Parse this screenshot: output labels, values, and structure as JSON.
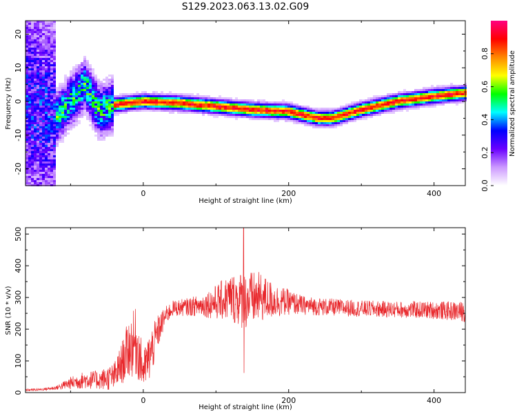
{
  "title": "S129.2023.063.13.02.G09",
  "chart_data": [
    {
      "type": "heatmap",
      "name": "spectrogram",
      "xlabel": "Height of straight line (km)",
      "ylabel": "Frequency (Hz)",
      "xlim": [
        -162,
        443
      ],
      "ylim": [
        -25,
        24
      ],
      "xticks": [
        0,
        200,
        400
      ],
      "xtick_labels": [
        "0",
        "200",
        "400"
      ],
      "yticks": [
        -20,
        -10,
        0,
        10,
        20
      ],
      "ytick_labels": [
        "-20",
        "-10",
        "0",
        "10",
        "20"
      ],
      "ridge_x": [
        -162,
        -120,
        -100,
        -80,
        -60,
        -40,
        -20,
        0,
        50,
        100,
        150,
        200,
        240,
        260,
        300,
        350,
        400,
        443
      ],
      "ridge_freq": [
        0,
        -5,
        0,
        5,
        -3,
        -1,
        -0.5,
        0,
        -0.5,
        -1.5,
        -2.5,
        -3,
        -5,
        -5,
        -2.5,
        0,
        1.5,
        2.5
      ],
      "colorbar": {
        "label": "Normalized spectral amplitude",
        "ticks": [
          0.0,
          0.2,
          0.4,
          0.6,
          0.8
        ],
        "tick_labels": [
          "0.0",
          "0.2",
          "0.4",
          "0.6",
          "0.8"
        ],
        "range": [
          0,
          1
        ],
        "colors": [
          "#ffffff",
          "#cc99ff",
          "#6a00ff",
          "#0000ff",
          "#00ffff",
          "#00ff00",
          "#ffff00",
          "#ff8800",
          "#ff0000",
          "#ff0080"
        ]
      }
    },
    {
      "type": "line",
      "name": "snr",
      "xlabel": "Height of straight line (km)",
      "ylabel": "SNR (10 * v/v)",
      "xlim": [
        -162,
        443
      ],
      "ylim": [
        0,
        520
      ],
      "xticks": [
        0,
        200,
        400
      ],
      "xtick_labels": [
        "0",
        "200",
        "400"
      ],
      "yticks": [
        0,
        100,
        200,
        300,
        400,
        500
      ],
      "ytick_labels": [
        "0",
        "100",
        "200",
        "300",
        "400",
        "500"
      ],
      "series": [
        {
          "name": "SNR",
          "color": "#e8262a",
          "x": [
            -162,
            -140,
            -120,
            -100,
            -80,
            -60,
            -40,
            -30,
            -20,
            -10,
            0,
            10,
            20,
            30,
            40,
            60,
            80,
            100,
            120,
            140,
            160,
            180,
            200,
            220,
            250,
            300,
            350,
            400,
            443
          ],
          "y": [
            8,
            10,
            15,
            30,
            40,
            40,
            50,
            90,
            140,
            160,
            70,
            120,
            190,
            240,
            265,
            270,
            275,
            285,
            300,
            290,
            300,
            290,
            285,
            275,
            270,
            265,
            262,
            260,
            255
          ],
          "noise": [
            4,
            4,
            6,
            20,
            28,
            30,
            45,
            65,
            95,
            110,
            60,
            80,
            55,
            30,
            25,
            28,
            35,
            55,
            75,
            95,
            80,
            55,
            40,
            30,
            28,
            26,
            26,
            28,
            32
          ],
          "peak": {
            "x": 138,
            "y": 520
          },
          "dip": {
            "x": 138,
            "y": 62
          }
        }
      ]
    }
  ]
}
